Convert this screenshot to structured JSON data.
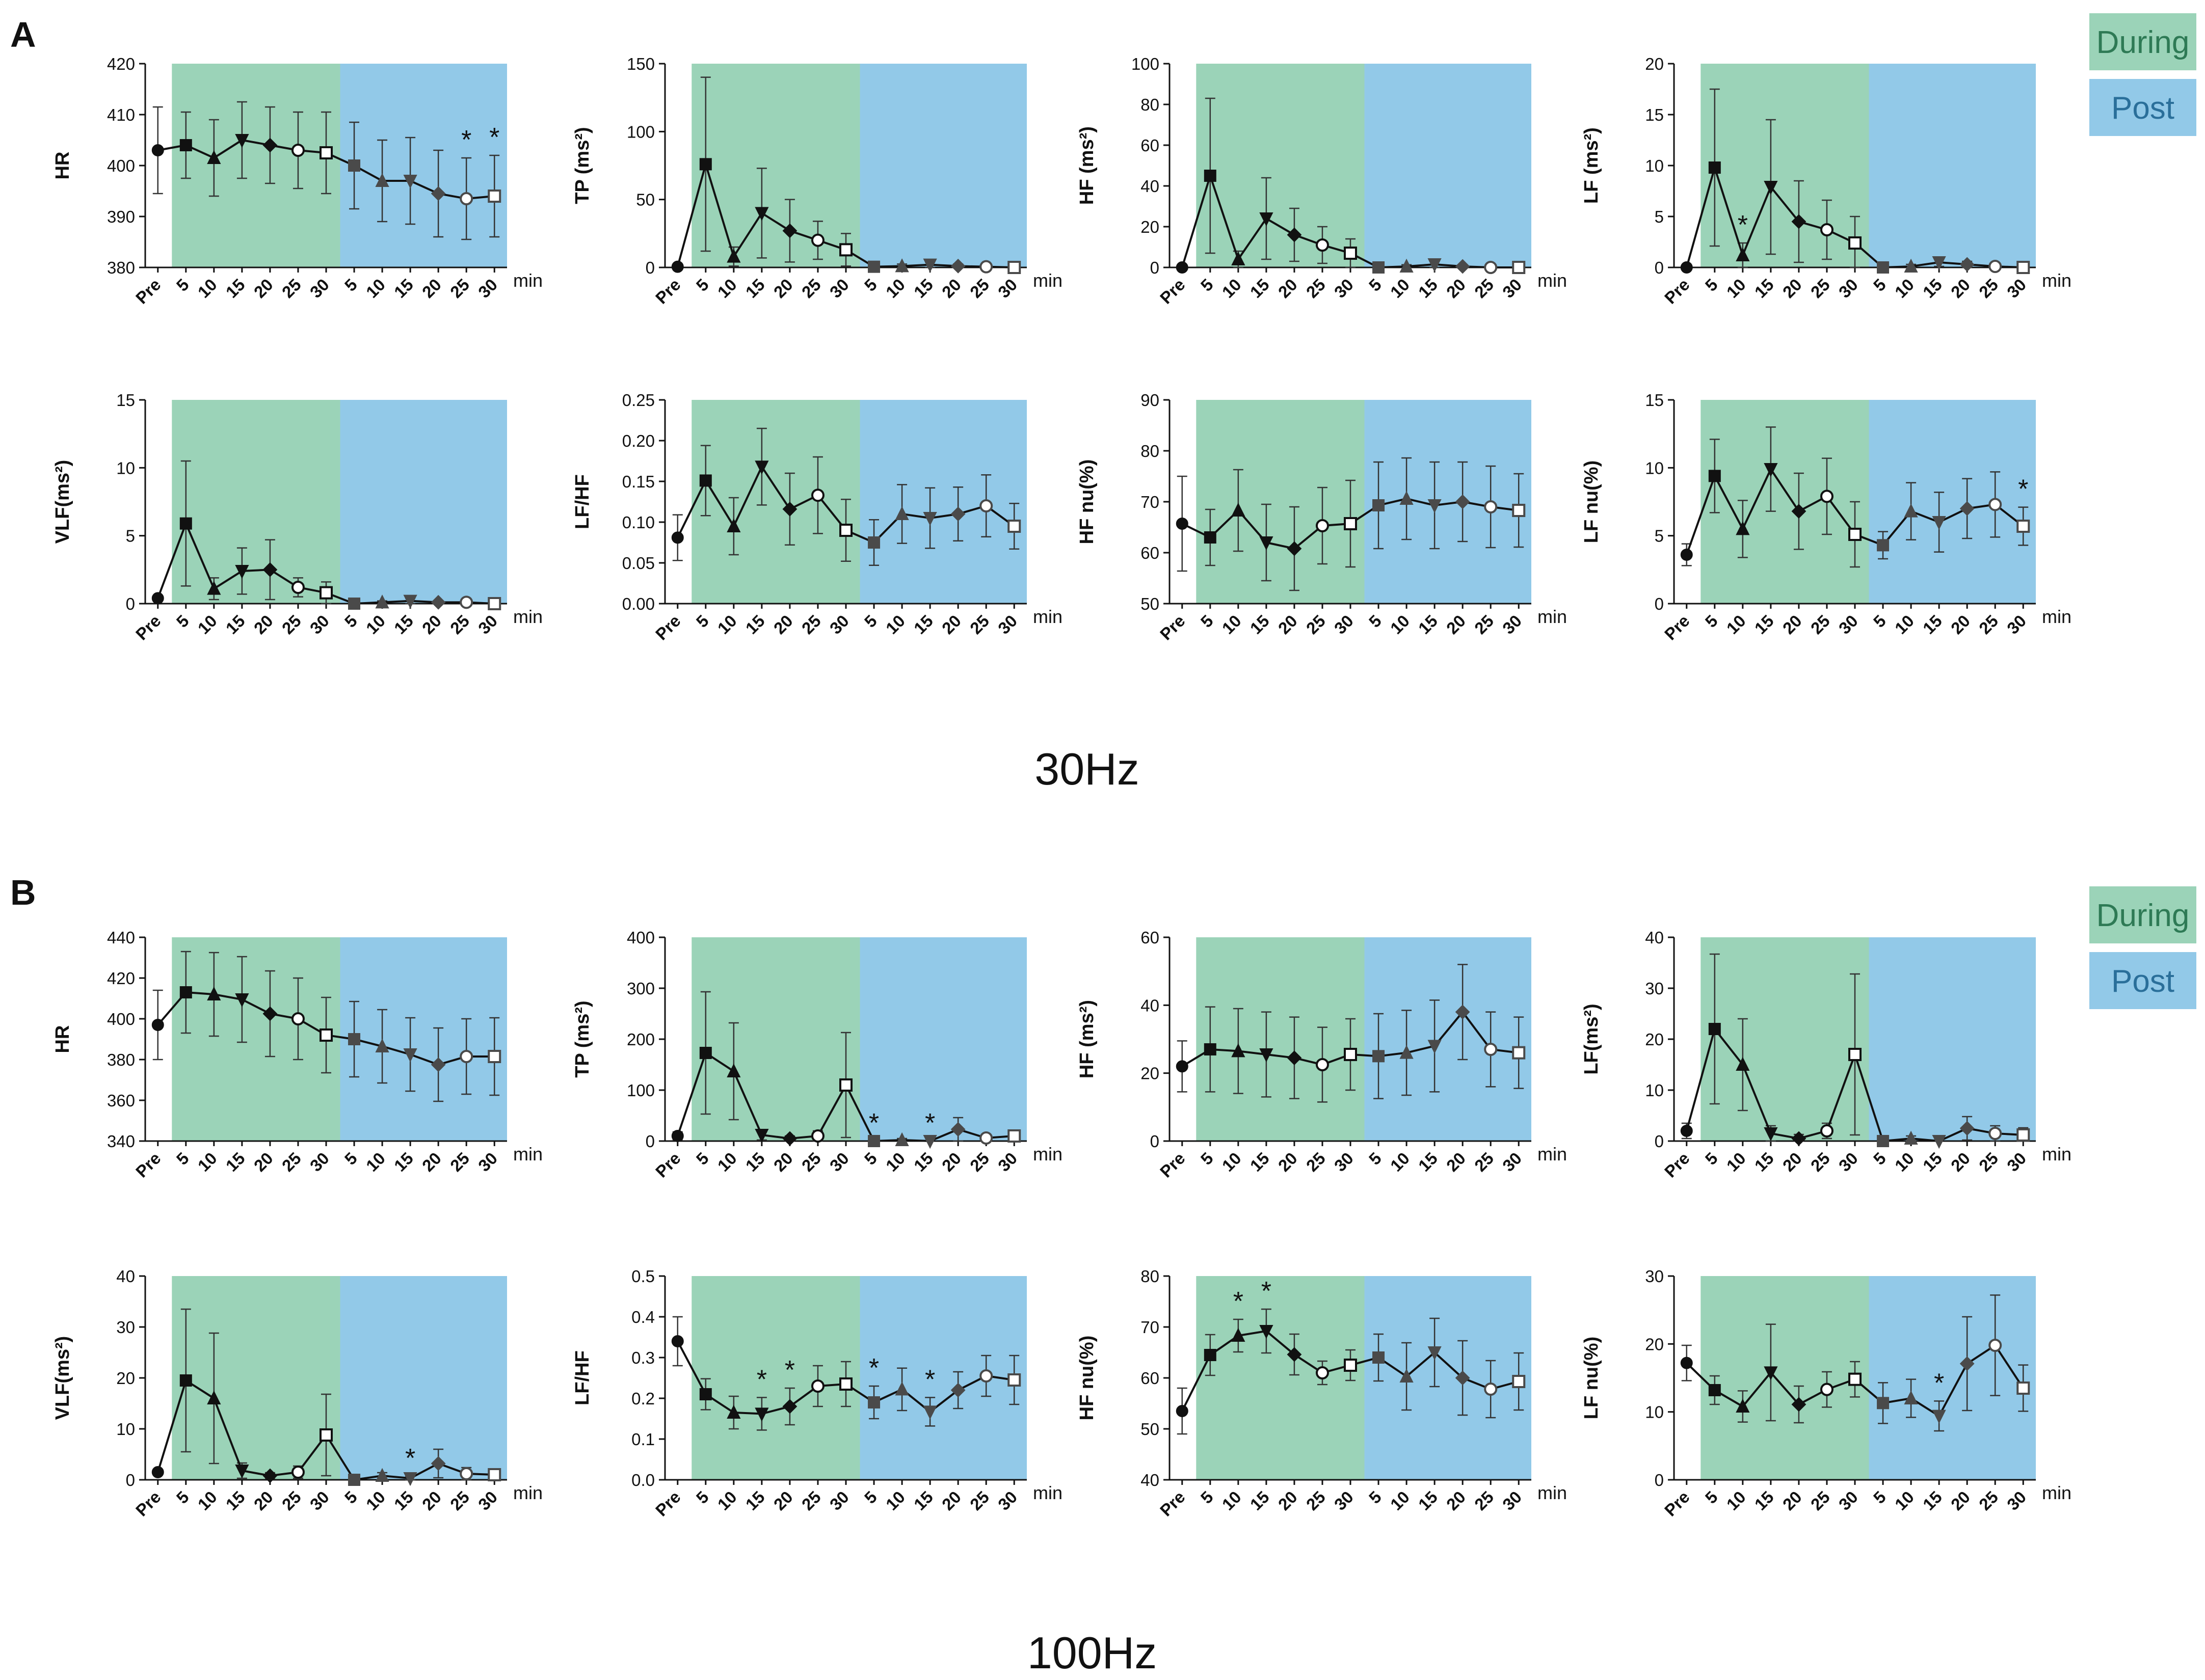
{
  "figure": {
    "sections": [
      {
        "letter": "A",
        "frequency": "30Hz"
      },
      {
        "letter": "B",
        "frequency": "100Hz"
      }
    ],
    "legend": [
      {
        "label": "During",
        "color": "#9bd3b8"
      },
      {
        "label": "Post",
        "color": "#92c9e8"
      }
    ],
    "x_unit": "min",
    "marker_sequence": [
      "circle",
      "square",
      "triangle-up",
      "triangle-down",
      "diamond",
      "circle-open",
      "square-open"
    ],
    "colors": {
      "during": "#9bd3b8",
      "post": "#92c9e8",
      "line": "#111111"
    }
  },
  "chart_data": [
    {
      "id": "A-HR",
      "section": "A",
      "type": "line",
      "ylabel": "HR",
      "ylim": [
        380,
        420
      ],
      "yticks": [
        "380",
        "390",
        "400",
        "410",
        "420"
      ],
      "categories": [
        "Pre",
        "5",
        "10",
        "15",
        "20",
        "25",
        "30",
        "5",
        "10",
        "15",
        "20",
        "25",
        "30"
      ],
      "phases": [
        "pre",
        "during",
        "during",
        "during",
        "during",
        "during",
        "during",
        "post",
        "post",
        "post",
        "post",
        "post",
        "post"
      ],
      "values": [
        403,
        404,
        401.5,
        405,
        404,
        403,
        402.5,
        400,
        397,
        397,
        394.5,
        393.5,
        394
      ],
      "errors": [
        8.5,
        6.5,
        7.5,
        7.5,
        7.5,
        7.5,
        8,
        8.5,
        8,
        8.5,
        8.5,
        8,
        8
      ],
      "significance": [
        {
          "index": 11,
          "label": "*"
        },
        {
          "index": 12,
          "label": "*"
        }
      ]
    },
    {
      "id": "A-TP",
      "section": "A",
      "type": "line",
      "ylabel": "TP (ms²)",
      "ylim": [
        0,
        150
      ],
      "yticks": [
        "0",
        "50",
        "100",
        "150"
      ],
      "categories": [
        "Pre",
        "5",
        "10",
        "15",
        "20",
        "25",
        "30",
        "5",
        "10",
        "15",
        "20",
        "25",
        "30"
      ],
      "phases": [
        "pre",
        "during",
        "during",
        "during",
        "during",
        "during",
        "during",
        "post",
        "post",
        "post",
        "post",
        "post",
        "post"
      ],
      "values": [
        0.5,
        76,
        8,
        40,
        27,
        20,
        13,
        0.5,
        1,
        2,
        1,
        0.5,
        0
      ],
      "errors": [
        0,
        64,
        7,
        33,
        23,
        14,
        12,
        0.5,
        1.5,
        2,
        1.5,
        0.5,
        0
      ],
      "significance": []
    },
    {
      "id": "A-HF",
      "section": "A",
      "type": "line",
      "ylabel": "HF (ms²)",
      "ylim": [
        0,
        100
      ],
      "yticks": [
        "0",
        "20",
        "40",
        "60",
        "80",
        "100"
      ],
      "categories": [
        "Pre",
        "5",
        "10",
        "15",
        "20",
        "25",
        "30",
        "5",
        "10",
        "15",
        "20",
        "25",
        "30"
      ],
      "phases": [
        "pre",
        "during",
        "during",
        "during",
        "during",
        "during",
        "during",
        "post",
        "post",
        "post",
        "post",
        "post",
        "post"
      ],
      "values": [
        0,
        45,
        4,
        24,
        16,
        11,
        7,
        0,
        0.5,
        1.5,
        0.5,
        0,
        0
      ],
      "errors": [
        0,
        38,
        4,
        20,
        13,
        9,
        7,
        0,
        0.8,
        1.5,
        0.8,
        0.3,
        0
      ],
      "significance": []
    },
    {
      "id": "A-LF",
      "section": "A",
      "type": "line",
      "ylabel": "LF (ms²)",
      "ylim": [
        0,
        20
      ],
      "yticks": [
        "0",
        "5",
        "10",
        "15",
        "20"
      ],
      "categories": [
        "Pre",
        "5",
        "10",
        "15",
        "20",
        "25",
        "30",
        "5",
        "10",
        "15",
        "20",
        "25",
        "30"
      ],
      "phases": [
        "pre",
        "during",
        "during",
        "during",
        "during",
        "during",
        "during",
        "post",
        "post",
        "post",
        "post",
        "post",
        "post"
      ],
      "values": [
        0,
        9.8,
        1.2,
        7.9,
        4.5,
        3.7,
        2.4,
        0,
        0.1,
        0.5,
        0.3,
        0.1,
        0
      ],
      "errors": [
        0,
        7.7,
        1.2,
        6.6,
        4.0,
        2.9,
        2.6,
        0,
        0.2,
        0.4,
        0.3,
        0.1,
        0
      ],
      "significance": [
        {
          "index": 2,
          "label": "*"
        }
      ]
    },
    {
      "id": "A-VLF",
      "section": "A",
      "type": "line",
      "ylabel": "VLF(ms²)",
      "ylim": [
        0,
        15
      ],
      "yticks": [
        "0",
        "5",
        "10",
        "15"
      ],
      "categories": [
        "Pre",
        "5",
        "10",
        "15",
        "20",
        "25",
        "30",
        "5",
        "10",
        "15",
        "20",
        "25",
        "30"
      ],
      "phases": [
        "pre",
        "during",
        "during",
        "during",
        "during",
        "during",
        "during",
        "post",
        "post",
        "post",
        "post",
        "post",
        "post"
      ],
      "values": [
        0.4,
        5.9,
        1.1,
        2.4,
        2.5,
        1.2,
        0.8,
        0,
        0.1,
        0.2,
        0.1,
        0.1,
        0
      ],
      "errors": [
        0,
        4.6,
        0.8,
        1.7,
        2.2,
        0.7,
        0.8,
        0,
        0.1,
        0.2,
        0.1,
        0.1,
        0
      ],
      "significance": []
    },
    {
      "id": "A-LFHF",
      "section": "A",
      "type": "line",
      "ylabel": "LF/HF",
      "ylim": [
        0,
        0.25
      ],
      "yticks": [
        "0.00",
        "0.05",
        "0.10",
        "0.15",
        "0.20",
        "0.25"
      ],
      "categories": [
        "Pre",
        "5",
        "10",
        "15",
        "20",
        "25",
        "30",
        "5",
        "10",
        "15",
        "20",
        "25",
        "30"
      ],
      "phases": [
        "pre",
        "during",
        "during",
        "during",
        "during",
        "during",
        "during",
        "post",
        "post",
        "post",
        "post",
        "post",
        "post"
      ],
      "values": [
        0.081,
        0.151,
        0.095,
        0.168,
        0.116,
        0.133,
        0.09,
        0.075,
        0.11,
        0.105,
        0.11,
        0.12,
        0.095
      ],
      "errors": [
        0.028,
        0.043,
        0.035,
        0.047,
        0.044,
        0.047,
        0.038,
        0.028,
        0.036,
        0.037,
        0.033,
        0.038,
        0.028
      ],
      "significance": []
    },
    {
      "id": "A-HFnu",
      "section": "A",
      "type": "line",
      "ylabel": "HF nu(%)",
      "ylim": [
        50,
        90
      ],
      "yticks": [
        "50",
        "60",
        "70",
        "80",
        "90"
      ],
      "categories": [
        "Pre",
        "5",
        "10",
        "15",
        "20",
        "25",
        "30",
        "5",
        "10",
        "15",
        "20",
        "25",
        "30"
      ],
      "phases": [
        "pre",
        "during",
        "during",
        "during",
        "during",
        "during",
        "during",
        "post",
        "post",
        "post",
        "post",
        "post",
        "post"
      ],
      "values": [
        65.7,
        63,
        68.3,
        62,
        60.8,
        65.3,
        65.7,
        69.3,
        70.6,
        69.3,
        70,
        69,
        68.3
      ],
      "errors": [
        9.3,
        5.5,
        8,
        7.5,
        8.2,
        7.5,
        8.5,
        8.5,
        8,
        8.5,
        7.8,
        8,
        7.2
      ],
      "significance": []
    },
    {
      "id": "A-LFnu",
      "section": "A",
      "type": "line",
      "ylabel": "LF nu(%)",
      "ylim": [
        0,
        15
      ],
      "yticks": [
        "0",
        "5",
        "10",
        "15"
      ],
      "categories": [
        "Pre",
        "5",
        "10",
        "15",
        "20",
        "25",
        "30",
        "5",
        "10",
        "15",
        "20",
        "25",
        "30"
      ],
      "phases": [
        "pre",
        "during",
        "during",
        "during",
        "during",
        "during",
        "during",
        "post",
        "post",
        "post",
        "post",
        "post",
        "post"
      ],
      "values": [
        3.6,
        9.4,
        5.5,
        9.9,
        6.8,
        7.9,
        5.1,
        4.3,
        6.8,
        6,
        7,
        7.3,
        5.7
      ],
      "errors": [
        0.8,
        2.7,
        2.1,
        3.1,
        2.8,
        2.8,
        2.4,
        1.0,
        2.1,
        2.2,
        2.2,
        2.4,
        1.4
      ],
      "significance": [
        {
          "index": 12,
          "label": "*"
        }
      ]
    },
    {
      "id": "B-HR",
      "section": "B",
      "type": "line",
      "ylabel": "HR",
      "ylim": [
        340,
        440
      ],
      "yticks": [
        "340",
        "360",
        "380",
        "400",
        "420",
        "440"
      ],
      "categories": [
        "Pre",
        "5",
        "10",
        "15",
        "20",
        "25",
        "30",
        "5",
        "10",
        "15",
        "20",
        "25",
        "30"
      ],
      "phases": [
        "pre",
        "during",
        "during",
        "during",
        "during",
        "during",
        "during",
        "post",
        "post",
        "post",
        "post",
        "post",
        "post"
      ],
      "values": [
        397,
        413,
        412,
        409.5,
        402.5,
        400,
        392,
        390,
        386.5,
        382.5,
        377.5,
        381.5,
        381.5
      ],
      "errors": [
        17,
        20,
        20.5,
        21,
        21,
        20,
        18.5,
        18.5,
        18,
        18,
        18,
        18.5,
        19
      ],
      "significance": []
    },
    {
      "id": "B-TP",
      "section": "B",
      "type": "line",
      "ylabel": "TP (ms²)",
      "ylim": [
        0,
        400
      ],
      "yticks": [
        "0",
        "100",
        "200",
        "300",
        "400"
      ],
      "categories": [
        "Pre",
        "5",
        "10",
        "15",
        "20",
        "25",
        "30",
        "5",
        "10",
        "15",
        "20",
        "25",
        "30"
      ],
      "phases": [
        "pre",
        "during",
        "during",
        "during",
        "during",
        "during",
        "during",
        "post",
        "post",
        "post",
        "post",
        "post",
        "post"
      ],
      "values": [
        10,
        173,
        137,
        12,
        5,
        10,
        110,
        0,
        2,
        0,
        23,
        6,
        10
      ],
      "errors": [
        8,
        120,
        95,
        10,
        5,
        10,
        103,
        0,
        3,
        0,
        23,
        6,
        8
      ],
      "significance": [
        {
          "index": 7,
          "label": "*"
        },
        {
          "index": 9,
          "label": "*"
        }
      ]
    },
    {
      "id": "B-HF",
      "section": "B",
      "type": "line",
      "ylabel": "HF (ms²)",
      "ylim": [
        0,
        60
      ],
      "yticks": [
        "0",
        "20",
        "40",
        "60"
      ],
      "categories": [
        "Pre",
        "5",
        "10",
        "15",
        "20",
        "25",
        "30",
        "5",
        "10",
        "15",
        "20",
        "25",
        "30"
      ],
      "phases": [
        "pre",
        "during",
        "during",
        "during",
        "during",
        "during",
        "during",
        "post",
        "post",
        "post",
        "post",
        "post",
        "post"
      ],
      "values": [
        22,
        27,
        26.5,
        25.5,
        24.5,
        22.5,
        25.5,
        25,
        26,
        28,
        38,
        27,
        26
      ],
      "errors": [
        7.5,
        12.5,
        12.5,
        12.5,
        12,
        11,
        10.5,
        12.5,
        12.5,
        13.5,
        14,
        11,
        10.5
      ],
      "significance": []
    },
    {
      "id": "B-LF",
      "section": "B",
      "type": "line",
      "ylabel": "LF(ms²)",
      "ylim": [
        0,
        40
      ],
      "yticks": [
        "0",
        "10",
        "20",
        "30",
        "40"
      ],
      "categories": [
        "Pre",
        "5",
        "10",
        "15",
        "20",
        "25",
        "30",
        "5",
        "10",
        "15",
        "20",
        "25",
        "30"
      ],
      "phases": [
        "pre",
        "during",
        "during",
        "during",
        "during",
        "during",
        "during",
        "post",
        "post",
        "post",
        "post",
        "post",
        "post"
      ],
      "values": [
        2,
        22,
        15,
        1.5,
        0.5,
        2,
        17,
        0,
        0.5,
        0,
        2.5,
        1.5,
        1.2
      ],
      "errors": [
        1.5,
        14.7,
        9,
        1.5,
        0.8,
        1.5,
        15.8,
        0,
        0.5,
        0,
        2.3,
        1.5,
        1.4
      ],
      "significance": []
    },
    {
      "id": "B-VLF",
      "section": "B",
      "type": "line",
      "ylabel": "VLF(ms²)",
      "ylim": [
        0,
        40
      ],
      "yticks": [
        "0",
        "10",
        "20",
        "30",
        "40"
      ],
      "categories": [
        "Pre",
        "5",
        "10",
        "15",
        "20",
        "25",
        "30",
        "5",
        "10",
        "15",
        "20",
        "25",
        "30"
      ],
      "phases": [
        "pre",
        "during",
        "during",
        "during",
        "during",
        "during",
        "during",
        "post",
        "post",
        "post",
        "post",
        "post",
        "post"
      ],
      "values": [
        1.5,
        19.5,
        16,
        1.8,
        0.8,
        1.5,
        8.8,
        0,
        0.8,
        0.3,
        3.2,
        1.2,
        1
      ],
      "errors": [
        0.5,
        14,
        12.8,
        1.5,
        0.6,
        1.2,
        8,
        0,
        0.6,
        0.4,
        2.8,
        1.2,
        0.8
      ],
      "significance": [
        {
          "index": 9,
          "label": "*"
        }
      ]
    },
    {
      "id": "B-LFHF",
      "section": "B",
      "type": "line",
      "ylabel": "LF/HF",
      "ylim": [
        0,
        0.5
      ],
      "yticks": [
        "0.0",
        "0.1",
        "0.2",
        "0.3",
        "0.4",
        "0.5"
      ],
      "categories": [
        "Pre",
        "5",
        "10",
        "15",
        "20",
        "25",
        "30",
        "5",
        "10",
        "15",
        "20",
        "25",
        "30"
      ],
      "phases": [
        "pre",
        "during",
        "during",
        "during",
        "during",
        "during",
        "during",
        "post",
        "post",
        "post",
        "post",
        "post",
        "post"
      ],
      "values": [
        0.34,
        0.21,
        0.165,
        0.162,
        0.18,
        0.23,
        0.235,
        0.19,
        0.222,
        0.167,
        0.22,
        0.255,
        0.245
      ],
      "errors": [
        0.06,
        0.038,
        0.04,
        0.04,
        0.045,
        0.05,
        0.055,
        0.04,
        0.052,
        0.035,
        0.045,
        0.05,
        0.06
      ],
      "significance": [
        {
          "index": 3,
          "label": "*"
        },
        {
          "index": 4,
          "label": "*"
        },
        {
          "index": 7,
          "label": "*"
        },
        {
          "index": 9,
          "label": "*"
        }
      ]
    },
    {
      "id": "B-HFnu",
      "section": "B",
      "type": "line",
      "ylabel": "HF nu(%)",
      "ylim": [
        40,
        80
      ],
      "yticks": [
        "40",
        "50",
        "60",
        "70",
        "80"
      ],
      "categories": [
        "Pre",
        "5",
        "10",
        "15",
        "20",
        "25",
        "30",
        "5",
        "10",
        "15",
        "20",
        "25",
        "30"
      ],
      "phases": [
        "pre",
        "during",
        "during",
        "during",
        "during",
        "during",
        "during",
        "post",
        "post",
        "post",
        "post",
        "post",
        "post"
      ],
      "values": [
        53.5,
        64.5,
        68.3,
        69.2,
        64.6,
        61,
        62.5,
        64,
        60.3,
        65,
        60,
        57.8,
        59.3
      ],
      "errors": [
        4.5,
        4,
        3.2,
        4.3,
        4,
        2.3,
        3,
        4.6,
        6.6,
        6.7,
        7.3,
        5.6,
        5.6
      ],
      "significance": [
        {
          "index": 2,
          "label": "*"
        },
        {
          "index": 3,
          "label": "*"
        }
      ]
    },
    {
      "id": "B-LFnu",
      "section": "B",
      "type": "line",
      "ylabel": "LF nu(%)",
      "ylim": [
        0,
        30
      ],
      "yticks": [
        "0",
        "10",
        "20",
        "30"
      ],
      "categories": [
        "Pre",
        "5",
        "10",
        "15",
        "20",
        "25",
        "30",
        "5",
        "10",
        "15",
        "20",
        "25",
        "30"
      ],
      "phases": [
        "pre",
        "during",
        "during",
        "during",
        "during",
        "during",
        "during",
        "post",
        "post",
        "post",
        "post",
        "post",
        "post"
      ],
      "values": [
        17.2,
        13.2,
        10.8,
        15.8,
        11.1,
        13.3,
        14.8,
        11.3,
        12,
        9.4,
        17.1,
        19.8,
        13.5
      ],
      "errors": [
        2.6,
        2.1,
        2.3,
        7.1,
        2.7,
        2.6,
        2.6,
        3,
        2.8,
        2.2,
        6.9,
        7.4,
        3.4
      ],
      "significance": [
        {
          "index": 9,
          "label": "*"
        }
      ]
    }
  ]
}
